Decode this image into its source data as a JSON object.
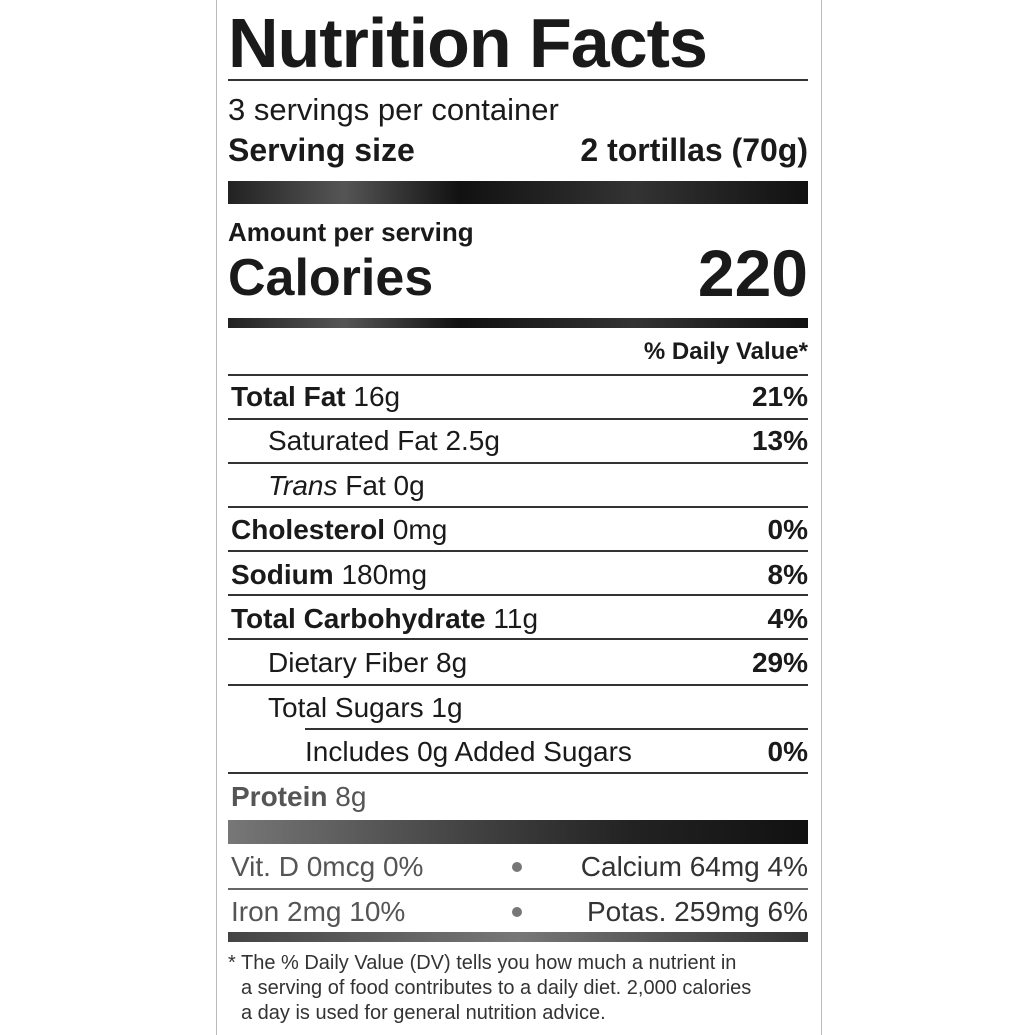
{
  "title": "Nutrition Facts",
  "servings": "3 servings per container",
  "serving_size_label": "Serving size",
  "serving_size_value": "2 tortillas (70g)",
  "amount_per_serving": "Amount per serving",
  "calories_label": "Calories",
  "calories_value": "220",
  "daily_value_header": "% Daily Value*",
  "nutrients": [
    {
      "label": "Total Fat",
      "amount": "16g",
      "dv": "21%"
    },
    {
      "label": "Saturated Fat",
      "amount": "2.5g",
      "dv": "13%"
    },
    {
      "label": "Trans",
      "label2": "Fat",
      "amount": "0g",
      "dv": ""
    },
    {
      "label": "Cholesterol",
      "amount": "0mg",
      "dv": "0%"
    },
    {
      "label": "Sodium",
      "amount": "180mg",
      "dv": "8%"
    },
    {
      "label": "Total Carbohydrate",
      "amount": "11g",
      "dv": "4%"
    },
    {
      "label": "Dietary Fiber",
      "amount": "8g",
      "dv": "29%"
    },
    {
      "label": "Total Sugars",
      "amount": "1g",
      "dv": ""
    },
    {
      "label": "Includes 0g Added Sugars",
      "amount": "",
      "dv": "0%"
    },
    {
      "label": "Protein",
      "amount": "8g",
      "dv": ""
    }
  ],
  "vitamins": [
    {
      "left": "Vit. D 0mcg 0%",
      "right": "Calcium 64mg 4%"
    },
    {
      "left": "Iron 2mg 10%",
      "right": "Potas. 259mg 6%"
    }
  ],
  "footnote": [
    "* The % Daily Value (DV) tells you how much a nutrient in",
    "a serving of food contributes to a daily diet. 2,000 calories",
    "a day is used for general nutrition advice."
  ]
}
